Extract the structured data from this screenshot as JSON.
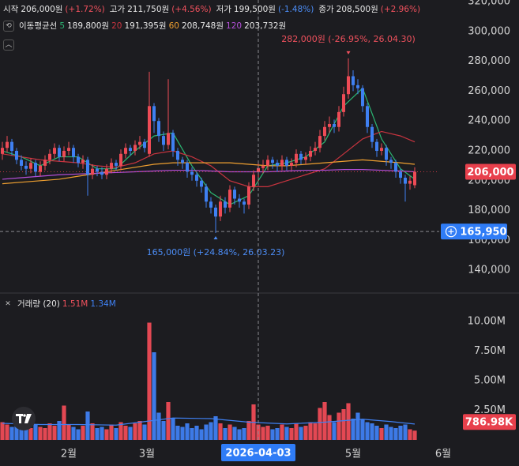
{
  "header": {
    "ohlc": [
      {
        "label": "시작",
        "value": "206,000원",
        "change": "(+1.72%)",
        "color": "#f0515d"
      },
      {
        "label": "고가",
        "value": "211,750원",
        "change": "(+4.56%)",
        "color": "#f0515d"
      },
      {
        "label": "저가",
        "value": "199,500원",
        "change": "(-1.48%)",
        "color": "#4c8df6"
      },
      {
        "label": "종가",
        "value": "208,500원",
        "change": "(+2.96%)",
        "color": "#f0515d"
      }
    ],
    "ma_title": "이동평균선",
    "volume_title": "거래량 (20)",
    "volume_label": "1.51M"
  },
  "chart_data": [
    {
      "type": "candlestick",
      "up_color": "#ee4b56",
      "down_color": "#3f80f2",
      "xlim": [
        -0.5,
        109
      ],
      "ylim": [
        125300,
        321060
      ],
      "yticks": [
        {
          "value": 140000,
          "label": "140,000"
        },
        {
          "value": 160000,
          "label": "160,000"
        },
        {
          "value": 180000,
          "label": "180,000"
        },
        {
          "value": 200000,
          "label": "200,000"
        },
        {
          "value": 220000,
          "label": "220,000"
        },
        {
          "value": 240000,
          "label": "240,000"
        },
        {
          "value": 260000,
          "label": "260,000"
        },
        {
          "value": 280000,
          "label": "280,000"
        },
        {
          "value": 300000,
          "label": "300,000"
        },
        {
          "value": 320000,
          "label": "320,000"
        }
      ],
      "grid": false,
      "open": [
        218000,
        222000,
        226000,
        220000,
        214000,
        210000,
        208000,
        212000,
        206000,
        210000,
        214000,
        218000,
        222000,
        216000,
        220000,
        222000,
        216000,
        212000,
        214000,
        204000,
        208000,
        206000,
        204000,
        208000,
        212000,
        210000,
        218000,
        222000,
        220000,
        224000,
        226000,
        218000,
        250000,
        240000,
        230000,
        224000,
        232000,
        220000,
        214000,
        212000,
        206000,
        204000,
        200000,
        196000,
        186000,
        182000,
        176000,
        186000,
        182000,
        194000,
        188000,
        186000,
        184000,
        196000,
        206000,
        208500,
        210000,
        214000,
        212000,
        210000,
        214000,
        210000,
        212000,
        218000,
        214000,
        216000,
        220000,
        222000,
        230000,
        236000,
        238000,
        236000,
        246000,
        258000,
        270000,
        264000,
        262000,
        250000,
        236000,
        226000,
        220000,
        222000,
        214000,
        212000,
        206000,
        202000,
        198000,
        197000
      ],
      "high": [
        226000,
        230000,
        228000,
        222000,
        217000,
        213000,
        215000,
        214000,
        213000,
        217000,
        221000,
        225000,
        224000,
        223000,
        226000,
        224000,
        218000,
        217000,
        216000,
        211000,
        210000,
        209000,
        211000,
        215000,
        214000,
        221000,
        225000,
        224000,
        227000,
        230000,
        228000,
        273000,
        252000,
        242000,
        233000,
        268000,
        234000,
        222000,
        216000,
        214000,
        209000,
        206000,
        202000,
        198000,
        189000,
        184000,
        190000,
        189000,
        197000,
        196000,
        191000,
        188000,
        199000,
        207000,
        211750,
        214000,
        217000,
        216000,
        214000,
        217000,
        216000,
        215000,
        221000,
        220000,
        219000,
        223000,
        226000,
        234000,
        240000,
        243000,
        241000,
        250000,
        263000,
        282000,
        274000,
        268000,
        264000,
        252000,
        238000,
        228000,
        225000,
        224000,
        216000,
        214000,
        208000,
        204000,
        203000,
        209000
      ],
      "low": [
        214000,
        219000,
        217000,
        211000,
        207000,
        204000,
        205000,
        203000,
        203000,
        207000,
        211000,
        215000,
        213000,
        213000,
        217000,
        212000,
        209000,
        208000,
        190000,
        201000,
        203000,
        201000,
        201000,
        205000,
        207000,
        207000,
        215000,
        217000,
        217000,
        221000,
        219000,
        216000,
        232000,
        226000,
        220000,
        221000,
        216000,
        210000,
        208000,
        202000,
        200000,
        196000,
        192000,
        182000,
        178000,
        165000,
        173000,
        178000,
        179000,
        184000,
        182000,
        178000,
        181000,
        193000,
        199500,
        205000,
        207000,
        208000,
        206000,
        207000,
        207000,
        207000,
        209000,
        211000,
        211000,
        213000,
        217000,
        219000,
        227000,
        232000,
        232000,
        233000,
        243000,
        255000,
        260000,
        258000,
        246000,
        232000,
        222000,
        216000,
        217000,
        210000,
        208000,
        202000,
        198000,
        186000,
        194000,
        195000
      ],
      "close": [
        222000,
        226000,
        220000,
        214000,
        210000,
        208000,
        212000,
        206000,
        210000,
        214000,
        218000,
        222000,
        216000,
        220000,
        222000,
        216000,
        212000,
        214000,
        204000,
        208000,
        206000,
        204000,
        208000,
        212000,
        210000,
        218000,
        222000,
        220000,
        224000,
        226000,
        222000,
        250000,
        240000,
        230000,
        224000,
        232000,
        220000,
        214000,
        212000,
        206000,
        204000,
        200000,
        196000,
        186000,
        182000,
        176000,
        186000,
        182000,
        194000,
        188000,
        186000,
        184000,
        196000,
        204000,
        208500,
        210000,
        214000,
        212000,
        210000,
        214000,
        210000,
        212000,
        218000,
        214000,
        216000,
        220000,
        222000,
        230000,
        236000,
        238000,
        236000,
        246000,
        258000,
        270000,
        264000,
        262000,
        250000,
        236000,
        226000,
        220000,
        222000,
        214000,
        212000,
        206000,
        202000,
        198000,
        200000,
        206000
      ],
      "moving_averages": [
        {
          "name": "5",
          "color": "#2bb673",
          "legend_value": "189,800원",
          "x": [
            0,
            4,
            8,
            12,
            16,
            20,
            24,
            28,
            32,
            36,
            40,
            44,
            48,
            52,
            56,
            60,
            64,
            68,
            72,
            76,
            80,
            84,
            87
          ],
          "values": [
            220000,
            216000,
            210000,
            216000,
            216000,
            208000,
            208000,
            220000,
            230000,
            232000,
            210000,
            192000,
            184000,
            190000,
            210000,
            212000,
            216000,
            226000,
            250000,
            262000,
            228000,
            208000,
            201000
          ]
        },
        {
          "name": "20",
          "color": "#c8343f",
          "legend_value": "191,395원",
          "x": [
            0,
            4,
            8,
            12,
            16,
            20,
            24,
            28,
            32,
            36,
            40,
            44,
            48,
            52,
            56,
            60,
            64,
            68,
            72,
            76,
            80,
            84,
            87
          ],
          "values": [
            218000,
            216000,
            214000,
            213000,
            212000,
            210000,
            209000,
            212000,
            218000,
            220000,
            216000,
            210000,
            200000,
            196000,
            196000,
            200000,
            204000,
            208000,
            218000,
            228000,
            233000,
            230000,
            226000
          ]
        },
        {
          "name": "60",
          "color": "#f0a030",
          "legend_value": "208,748원",
          "x": [
            0,
            4,
            8,
            12,
            16,
            20,
            24,
            28,
            32,
            36,
            40,
            44,
            48,
            52,
            56,
            60,
            64,
            68,
            72,
            76,
            80,
            84,
            87
          ],
          "values": [
            198000,
            199000,
            200000,
            201000,
            203000,
            205000,
            207000,
            209000,
            211000,
            212000,
            212000,
            212000,
            212000,
            211000,
            210000,
            210000,
            211000,
            212000,
            213000,
            214000,
            213000,
            212000,
            211000
          ]
        },
        {
          "name": "120",
          "color": "#b44fd8",
          "legend_value": "203,732원",
          "x": [
            0,
            4,
            8,
            12,
            16,
            20,
            24,
            28,
            32,
            36,
            40,
            44,
            48,
            52,
            56,
            60,
            64,
            68,
            72,
            76,
            80,
            84,
            87
          ],
          "values": [
            201000,
            202000,
            203000,
            204000,
            204500,
            205000,
            205500,
            206000,
            206500,
            207000,
            207000,
            206500,
            206000,
            206000,
            206000,
            206500,
            207000,
            207000,
            207500,
            207500,
            207000,
            206500,
            206000
          ]
        }
      ],
      "last_price": {
        "value": 206000,
        "label": "206,000",
        "color": "#e8404c"
      },
      "crosshair": {
        "value": 165950,
        "label": "165,950",
        "color": "#2f7cf6"
      },
      "annotations": [
        {
          "text": "282,000원 (-26.95%, 26.04.30)",
          "x": 73,
          "y": 282000,
          "color": "#f0515d",
          "position": "above"
        },
        {
          "text": "165,000원 (+24.84%, 26.03.23)",
          "x": 45,
          "y": 165000,
          "color": "#4c8df6",
          "position": "below"
        }
      ]
    },
    {
      "type": "bar",
      "xlim": [
        -0.5,
        109
      ],
      "ylim": [
        0,
        12400000
      ],
      "yticks": [
        {
          "value": 2500000,
          "label": "2.50M"
        },
        {
          "value": 5000000,
          "label": "5.00M"
        },
        {
          "value": 7500000,
          "label": "7.50M"
        },
        {
          "value": 10000000,
          "label": "10.00M"
        }
      ],
      "xticks": [
        {
          "value": 14,
          "label": "2월"
        },
        {
          "value": 30.5,
          "label": "3월"
        },
        {
          "value": 74,
          "label": "5월"
        },
        {
          "value": 93,
          "label": "6월"
        }
      ],
      "values": [
        1500000,
        1300000,
        1100000,
        1400000,
        900000,
        1200000,
        1000000,
        1300000,
        1100000,
        1000000,
        1400000,
        1200000,
        1600000,
        2900000,
        1300000,
        1100000,
        900000,
        1200000,
        2400000,
        1400000,
        1000000,
        1100000,
        900000,
        1300000,
        1000000,
        1500000,
        1200000,
        1100000,
        1400000,
        1600000,
        1300000,
        9900000,
        7400000,
        2300000,
        1600000,
        3200000,
        1800000,
        1200000,
        1100000,
        1400000,
        1000000,
        1200000,
        900000,
        1300000,
        1500000,
        2000000,
        1400000,
        1000000,
        1300000,
        1100000,
        900000,
        1000000,
        1600000,
        3000000,
        1300000,
        1100000,
        1200000,
        900000,
        1000000,
        1300000,
        1100000,
        1000000,
        1400000,
        1100000,
        1200000,
        1500000,
        1400000,
        2700000,
        3200000,
        2100000,
        1500000,
        2300000,
        2600000,
        3100000,
        1800000,
        2300000,
        1700000,
        1500000,
        1400000,
        1200000,
        1000000,
        1300000,
        1100000,
        1000000,
        1200000,
        1300000,
        900000,
        786980
      ],
      "value_labels_last": {
        "value": 786980,
        "label": "786.98K",
        "color": "#e8404c"
      },
      "moving_average": {
        "name": "1.34M",
        "color": "#3f80f2",
        "x": [
          0,
          8,
          16,
          24,
          31,
          36,
          44,
          52,
          60,
          68,
          76,
          82,
          87
        ],
        "values": [
          1400000,
          1300000,
          1300000,
          1250000,
          1600000,
          1850000,
          1800000,
          1500000,
          1350000,
          1500000,
          1750000,
          1550000,
          1340000
        ]
      },
      "crosshair": {
        "value": 54,
        "label": "2026-04-03",
        "color": "#2f7cf6"
      }
    }
  ]
}
